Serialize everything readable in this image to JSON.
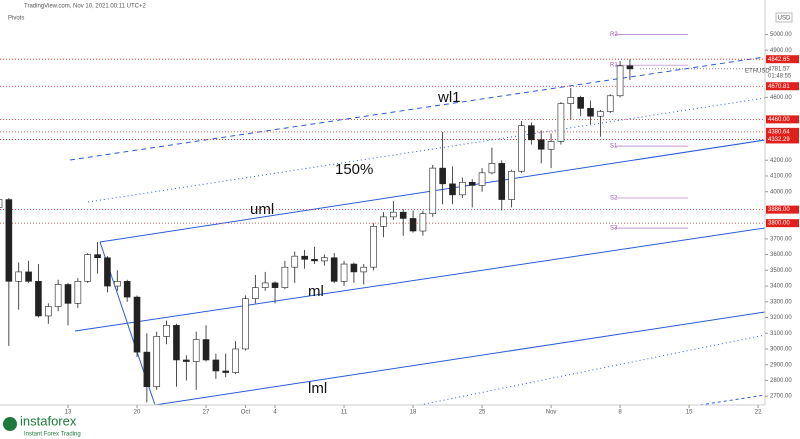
{
  "header": {
    "source": "TradingView.com, Nov 10, 2021 00:11 UTC+2",
    "indicator": "Pivots",
    "currency": "USD"
  },
  "watermark": {
    "brand": "instaforex",
    "tagline": "Instant Forex Trading"
  },
  "chart_data": {
    "type": "candlestick",
    "x": [
      0,
      1,
      2,
      3,
      4,
      5,
      6,
      7,
      8,
      9,
      10,
      11,
      12,
      13,
      14,
      15,
      16,
      17,
      18,
      19,
      20,
      21,
      22,
      23,
      24,
      25,
      26,
      27,
      28,
      29,
      30,
      31,
      32,
      33,
      34,
      35,
      36,
      37,
      38,
      39,
      40,
      41,
      42,
      43,
      44,
      45,
      46,
      47,
      48,
      49,
      50,
      51,
      52,
      53,
      54,
      55,
      56,
      57,
      58,
      59,
      60,
      61,
      62,
      63,
      64
    ],
    "open": [
      3900,
      3950,
      3430,
      3490,
      3430,
      3210,
      3270,
      3410,
      3290,
      3430,
      3600,
      3580,
      3400,
      3430,
      3330,
      2980,
      2760,
      3080,
      3150,
      2930,
      2920,
      3060,
      2930,
      2860,
      2850,
      3000,
      3320,
      3390,
      3420,
      3390,
      3520,
      3590,
      3570,
      3560,
      3580,
      3430,
      3540,
      3490,
      3520,
      3780,
      3840,
      3870,
      3830,
      3750,
      3860,
      4150,
      4050,
      3980,
      4060,
      4040,
      4120,
      4180,
      3950,
      4130,
      4420,
      4330,
      4270,
      4320,
      4560,
      4600,
      4530,
      4480,
      4510,
      4610,
      4800
    ],
    "high": [
      3970,
      3960,
      3550,
      3560,
      3540,
      3290,
      3440,
      3420,
      3450,
      3610,
      3680,
      3590,
      3500,
      3440,
      3340,
      3100,
      3110,
      3180,
      3160,
      2960,
      3110,
      3150,
      2970,
      2970,
      3050,
      3340,
      3470,
      3490,
      3430,
      3560,
      3620,
      3630,
      3650,
      3600,
      3610,
      3560,
      3550,
      3540,
      3800,
      3870,
      3940,
      3890,
      3880,
      3880,
      4170,
      4380,
      4160,
      4090,
      4080,
      4150,
      4280,
      4200,
      4140,
      4450,
      4440,
      4390,
      4370,
      4570,
      4660,
      4610,
      4580,
      4520,
      4620,
      4830,
      4842
    ],
    "low": [
      3830,
      3020,
      3250,
      3420,
      3200,
      3160,
      3240,
      3150,
      3260,
      3420,
      3480,
      3360,
      3370,
      3300,
      2950,
      2660,
      2740,
      3030,
      2760,
      2800,
      2740,
      2920,
      2810,
      2820,
      2840,
      2990,
      3290,
      3370,
      3290,
      3380,
      3420,
      3510,
      3540,
      3530,
      3420,
      3400,
      3420,
      3410,
      3500,
      3710,
      3820,
      3720,
      3740,
      3720,
      3840,
      3920,
      3920,
      3960,
      3900,
      4000,
      4110,
      3880,
      3900,
      4120,
      4300,
      4180,
      4150,
      4300,
      4460,
      4480,
      4430,
      4350,
      4500,
      4600,
      4710
    ],
    "close": [
      3950,
      3430,
      3490,
      3430,
      3210,
      3270,
      3410,
      3290,
      3430,
      3600,
      3580,
      3400,
      3430,
      3330,
      2980,
      2760,
      3080,
      3150,
      2930,
      2920,
      3060,
      2930,
      2860,
      2850,
      3000,
      3320,
      3390,
      3420,
      3390,
      3520,
      3590,
      3570,
      3560,
      3580,
      3430,
      3540,
      3490,
      3520,
      3780,
      3840,
      3870,
      3830,
      3750,
      3860,
      4150,
      4050,
      3980,
      4060,
      4040,
      4120,
      4180,
      3950,
      4130,
      4420,
      4330,
      4270,
      4320,
      4560,
      4600,
      4530,
      4480,
      4510,
      4610,
      4800,
      4781
    ],
    "xlim": [
      0,
      77.7
    ],
    "xticks": [
      {
        "value": 7,
        "label": "13"
      },
      {
        "value": 14,
        "label": "20"
      },
      {
        "value": 21,
        "label": "27"
      },
      {
        "value": 25,
        "label": "Oct"
      },
      {
        "value": 28,
        "label": "4"
      },
      {
        "value": 35,
        "label": "11"
      },
      {
        "value": 42,
        "label": "18"
      },
      {
        "value": 49,
        "label": "25"
      },
      {
        "value": 56,
        "label": "Nov"
      },
      {
        "value": 63,
        "label": "8"
      },
      {
        "value": 70,
        "label": "15"
      },
      {
        "value": 77,
        "label": "22"
      }
    ],
    "ylim": [
      2650,
      5200
    ],
    "yticks": [
      {
        "value": 5000,
        "label": "5000.00"
      },
      {
        "value": 4900,
        "label": "4900.00"
      },
      {
        "value": 4600,
        "label": "4600.00"
      },
      {
        "value": 4200,
        "label": "4200.00"
      },
      {
        "value": 4100,
        "label": "4100.00"
      },
      {
        "value": 4000,
        "label": "4000.00"
      },
      {
        "value": 3700,
        "label": "3700.00"
      },
      {
        "value": 3600,
        "label": "3600.00"
      },
      {
        "value": 3500,
        "label": "3500.00"
      },
      {
        "value": 3400,
        "label": "3400.00"
      },
      {
        "value": 3300,
        "label": "3300.00"
      },
      {
        "value": 3200,
        "label": "3200.00"
      },
      {
        "value": 3100,
        "label": "3100.00"
      },
      {
        "value": 3000,
        "label": "3000.00"
      },
      {
        "value": 2900,
        "label": "2900.00"
      },
      {
        "value": 2800,
        "label": "2800.00"
      },
      {
        "value": 2700,
        "label": "2700.00"
      }
    ],
    "levels": [
      {
        "value": 4842.65,
        "label": "4842.65"
      },
      {
        "value": 4670.81,
        "label": "4670.81"
      },
      {
        "value": 4460,
        "label": "4460.00"
      },
      {
        "value": 4380.64,
        "label": "4380.64"
      },
      {
        "value": 4332.29,
        "label": "4332.29"
      },
      {
        "value": 3886,
        "label": "3886.00"
      },
      {
        "value": 3800,
        "label": "3800.00"
      }
    ],
    "level_color": "#e0201b",
    "last_price": {
      "value": 4781.57,
      "symbol": "ETHUSD",
      "countdown": "01:48:55"
    },
    "pivots": [
      {
        "name": "R2",
        "value": 5000
      },
      {
        "name": "R1",
        "value": 4805
      },
      {
        "name": "S1",
        "value": 4290
      },
      {
        "name": "S2",
        "value": 3960
      },
      {
        "name": "S3",
        "value": 3769
      }
    ],
    "annotations": [
      "wl1",
      "150%",
      "uml",
      "ml",
      "lml"
    ]
  }
}
